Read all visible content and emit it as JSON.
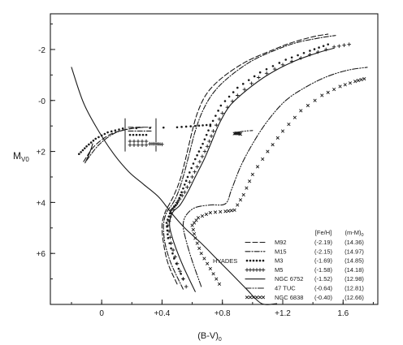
{
  "chart_data": {
    "type": "line",
    "title": "",
    "xlabel": "(B-V)",
    "xlabel_sub": "0",
    "ylabel": "M",
    "ylabel_sub": "V0",
    "xlim": [
      -0.34,
      1.83
    ],
    "ylim": [
      8.0,
      -3.4
    ],
    "y_inverted": true,
    "grid": false,
    "legend_position": "lower-right",
    "x_ticks": [
      {
        "value": 0,
        "label": "0"
      },
      {
        "value": 0.4,
        "label": "+0.4"
      },
      {
        "value": 0.8,
        "label": "+0.8"
      },
      {
        "value": 1.2,
        "label": "+1.2"
      },
      {
        "value": 1.6,
        "label": "1.6"
      }
    ],
    "y_ticks": [
      {
        "value": -2,
        "label": "-2"
      },
      {
        "value": 0,
        "label": "-0"
      },
      {
        "value": 2,
        "label": "+2"
      },
      {
        "value": 4,
        "label": "+4"
      },
      {
        "value": 6,
        "label": "+6"
      }
    ],
    "legend_header": {
      "feh": "[Fe/H]",
      "dm": "(m-M)",
      "dm_sub": "0"
    },
    "series": [
      {
        "name": "M92",
        "feh": "(-2.19)",
        "dm": "(14.36)",
        "style": "dash",
        "points": [
          [
            0.5,
            7.2
          ],
          [
            0.44,
            6.4
          ],
          [
            0.41,
            5.6
          ],
          [
            0.4,
            4.9
          ],
          [
            0.42,
            4.4
          ],
          [
            0.45,
            4.05
          ],
          [
            0.48,
            3.7
          ],
          [
            0.52,
            3.1
          ],
          [
            0.56,
            2.2
          ],
          [
            0.6,
            1.2
          ],
          [
            0.64,
            0.4
          ],
          [
            0.7,
            -0.3
          ],
          [
            0.8,
            -0.9
          ],
          [
            0.95,
            -1.5
          ],
          [
            1.1,
            -1.9
          ],
          [
            1.25,
            -2.25
          ],
          [
            1.4,
            -2.5
          ],
          [
            1.5,
            -2.6
          ]
        ],
        "hb_points": [
          [
            -0.12,
            2.4
          ],
          [
            -0.05,
            1.8
          ],
          [
            0.05,
            1.35
          ],
          [
            0.15,
            1.15
          ],
          [
            0.25,
            1.05
          ]
        ]
      },
      {
        "name": "M15",
        "feh": "(-2.15)",
        "dm": "(14.97)",
        "style": "dash-dot",
        "points": [
          [
            0.54,
            7.4
          ],
          [
            0.46,
            6.4
          ],
          [
            0.42,
            5.6
          ],
          [
            0.41,
            4.9
          ],
          [
            0.43,
            4.4
          ],
          [
            0.47,
            4.05
          ],
          [
            0.5,
            3.7
          ],
          [
            0.54,
            3.0
          ],
          [
            0.58,
            2.1
          ],
          [
            0.62,
            1.2
          ],
          [
            0.67,
            0.4
          ],
          [
            0.74,
            -0.3
          ],
          [
            0.84,
            -0.9
          ],
          [
            0.98,
            -1.5
          ],
          [
            1.12,
            -1.9
          ],
          [
            1.28,
            -2.25
          ],
          [
            1.44,
            -2.45
          ],
          [
            1.55,
            -2.55
          ]
        ],
        "hb_points": [
          [
            -0.1,
            2.35
          ],
          [
            -0.02,
            1.75
          ],
          [
            0.08,
            1.3
          ],
          [
            0.18,
            1.12
          ],
          [
            0.28,
            1.05
          ]
        ]
      },
      {
        "name": "M3",
        "feh": "(-1.69)",
        "dm": "(14.85)",
        "style": "dots",
        "points": [
          [
            0.54,
            7.0
          ],
          [
            0.48,
            6.2
          ],
          [
            0.44,
            5.4
          ],
          [
            0.43,
            4.8
          ],
          [
            0.46,
            4.3
          ],
          [
            0.5,
            4.05
          ],
          [
            0.53,
            3.6
          ],
          [
            0.57,
            3.0
          ],
          [
            0.62,
            2.3
          ],
          [
            0.67,
            1.7
          ],
          [
            0.72,
            1.0
          ],
          [
            0.79,
            0.2
          ],
          [
            0.9,
            -0.5
          ],
          [
            1.05,
            -1.1
          ],
          [
            1.22,
            -1.6
          ],
          [
            1.38,
            -1.95
          ],
          [
            1.5,
            -2.2
          ]
        ],
        "hb_points": [
          [
            -0.15,
            2.1
          ],
          [
            -0.1,
            1.8
          ],
          [
            -0.04,
            1.5
          ],
          [
            0.04,
            1.25
          ],
          [
            0.14,
            1.1
          ],
          [
            0.5,
            1.05
          ],
          [
            0.62,
            1.0
          ],
          [
            0.72,
            0.95
          ]
        ]
      },
      {
        "name": "M5",
        "feh": "(-1.58)",
        "dm": "(14.18)",
        "style": "plus",
        "points": [
          [
            0.56,
            7.3
          ],
          [
            0.5,
            6.4
          ],
          [
            0.46,
            5.6
          ],
          [
            0.44,
            4.9
          ],
          [
            0.46,
            4.4
          ],
          [
            0.5,
            4.0
          ],
          [
            0.55,
            3.6
          ],
          [
            0.6,
            3.0
          ],
          [
            0.65,
            2.4
          ],
          [
            0.7,
            1.8
          ],
          [
            0.74,
            1.2
          ],
          [
            0.8,
            0.5
          ],
          [
            0.9,
            -0.2
          ],
          [
            1.04,
            -0.9
          ],
          [
            1.2,
            -1.4
          ],
          [
            1.38,
            -1.8
          ],
          [
            1.54,
            -2.1
          ],
          [
            1.64,
            -2.2
          ]
        ],
        "hb_points": [
          [
            0.32,
            1.7
          ],
          [
            0.36,
            1.7
          ],
          [
            0.4,
            1.72
          ]
        ]
      },
      {
        "name": "NGC 6752",
        "feh": "(-1.52)",
        "dm": "(12.98)",
        "style": "solid",
        "points": [
          [
            0.62,
            7.5
          ],
          [
            0.54,
            6.5
          ],
          [
            0.48,
            5.6
          ],
          [
            0.45,
            4.9
          ],
          [
            0.47,
            4.4
          ],
          [
            0.52,
            4.1
          ],
          [
            0.57,
            3.6
          ],
          [
            0.62,
            3.0
          ],
          [
            0.68,
            2.3
          ],
          [
            0.73,
            1.6
          ],
          [
            0.78,
            0.9
          ],
          [
            0.85,
            0.2
          ],
          [
            0.96,
            -0.4
          ],
          [
            1.1,
            -1.0
          ],
          [
            1.26,
            -1.5
          ],
          [
            1.42,
            -1.85
          ],
          [
            1.54,
            -2.05
          ]
        ],
        "hb_points": [
          [
            -0.11,
            2.45
          ],
          [
            -0.09,
            2.2
          ],
          [
            -0.07,
            1.9
          ],
          [
            -0.06,
            1.7
          ]
        ]
      },
      {
        "name": "47 TUC",
        "feh": "(-0.64)",
        "dm": "(12.81)",
        "style": "dash-dot-dot",
        "points": [
          [
            0.66,
            7.3
          ],
          [
            0.6,
            6.3
          ],
          [
            0.56,
            5.5
          ],
          [
            0.54,
            4.9
          ],
          [
            0.56,
            4.5
          ],
          [
            0.62,
            4.2
          ],
          [
            0.72,
            4.1
          ],
          [
            0.82,
            4.05
          ],
          [
            0.86,
            3.5
          ],
          [
            0.92,
            2.6
          ],
          [
            1.0,
            1.7
          ],
          [
            1.1,
            0.8
          ],
          [
            1.22,
            0.0
          ],
          [
            1.36,
            -0.55
          ],
          [
            1.5,
            -0.95
          ],
          [
            1.64,
            -1.2
          ],
          [
            1.76,
            -1.3
          ]
        ],
        "hb_points": [
          [
            0.9,
            1.25
          ],
          [
            0.95,
            1.2
          ],
          [
            1.0,
            1.18
          ]
        ]
      },
      {
        "name": "NGC 6838",
        "feh": "(-0.40)",
        "dm": "(12.66)",
        "style": "cross",
        "points": [
          [
            0.78,
            7.2
          ],
          [
            0.72,
            6.6
          ],
          [
            0.66,
            6.0
          ],
          [
            0.62,
            5.4
          ],
          [
            0.6,
            4.9
          ],
          [
            0.64,
            4.6
          ],
          [
            0.72,
            4.4
          ],
          [
            0.82,
            4.35
          ],
          [
            0.88,
            4.3
          ],
          [
            0.94,
            3.7
          ],
          [
            1.0,
            2.9
          ],
          [
            1.1,
            2.0
          ],
          [
            1.2,
            1.2
          ],
          [
            1.32,
            0.4
          ],
          [
            1.46,
            -0.2
          ],
          [
            1.58,
            -0.55
          ],
          [
            1.68,
            -0.75
          ],
          [
            1.74,
            -0.85
          ]
        ],
        "hb_points": [
          [
            0.88,
            1.3
          ],
          [
            0.9,
            1.28
          ],
          [
            0.92,
            1.32
          ]
        ]
      }
    ],
    "hyades": {
      "name": "HYADES",
      "points": [
        [
          -0.2,
          -1.3
        ],
        [
          -0.12,
          0.1
        ],
        [
          -0.02,
          1.2
        ],
        [
          0.08,
          2.1
        ],
        [
          0.18,
          2.8
        ],
        [
          0.28,
          3.3
        ],
        [
          0.38,
          3.8
        ],
        [
          0.46,
          4.4
        ],
        [
          0.55,
          5.0
        ],
        [
          0.66,
          5.6
        ],
        [
          0.76,
          6.2
        ],
        [
          0.86,
          6.8
        ],
        [
          0.96,
          7.4
        ],
        [
          1.06,
          8.0
        ],
        [
          1.16,
          8.6
        ]
      ]
    },
    "hb_boxes": [
      {
        "x": 0.28,
        "y": 1.05,
        "style": "dash"
      },
      {
        "x": 0.28,
        "y": 1.2,
        "style": "dash-dot"
      },
      {
        "x": 0.28,
        "y": 1.35,
        "style": "dots"
      },
      {
        "x": 0.28,
        "y": 1.6,
        "style": "plus"
      },
      {
        "x": 0.28,
        "y": 1.75,
        "style": "plus"
      }
    ]
  }
}
